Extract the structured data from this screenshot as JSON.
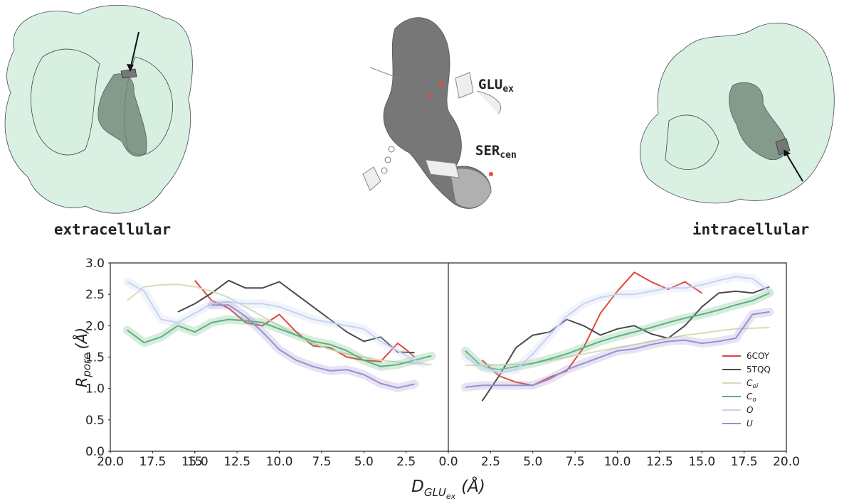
{
  "labels": {
    "left": "extracellular",
    "right": "intracellular",
    "glu": {
      "main": "GLU",
      "sub": "ex"
    },
    "ser": {
      "main": "SER",
      "sub": "cen"
    }
  },
  "chart_data": [
    {
      "type": "line",
      "xlabel": {
        "main": "D",
        "sub": "GLU",
        "subsub": "ex",
        "unit": "(Å)"
      },
      "ylabel": {
        "main": "R",
        "sub": "pore",
        "unit": "(Å)"
      },
      "xlim": [
        20,
        0
      ],
      "xticks": [
        {
          "value": 20,
          "label": "20.0"
        },
        17.5,
        15,
        {
          "value": 15,
          "label": "15.0"
        },
        12.5,
        {
          "value": 10,
          "label": "10.0"
        },
        7.5,
        {
          "value": 5,
          "label": "5.0"
        },
        2.5,
        {
          "value": 0,
          "label": "0.0"
        }
      ],
      "ylim": [
        0,
        3
      ],
      "yticks": [
        {
          "value": 0,
          "label": "0.0"
        },
        0.5,
        {
          "value": 1,
          "label": "1.0"
        },
        1.5,
        {
          "value": 2,
          "label": "2.0"
        },
        2.5,
        {
          "value": 3,
          "label": "3.0"
        }
      ],
      "series": [
        {
          "color": "#e0443a",
          "x": [
            15,
            14,
            13,
            12,
            11,
            10,
            9,
            8,
            7,
            6,
            5,
            4,
            3,
            2.5,
            2
          ],
          "values": [
            2.72,
            2.4,
            2.28,
            2.05,
            2.0,
            2.18,
            1.9,
            1.68,
            1.65,
            1.5,
            1.45,
            1.43,
            1.72,
            1.62,
            1.5
          ]
        },
        {
          "color": "#4a4a4a",
          "x": [
            16,
            15,
            14,
            13,
            12,
            11,
            10,
            9,
            8,
            7,
            6,
            5,
            4,
            3,
            2
          ],
          "values": [
            2.22,
            2.35,
            2.52,
            2.72,
            2.6,
            2.6,
            2.7,
            2.5,
            2.3,
            2.1,
            1.9,
            1.75,
            1.82,
            1.58,
            1.57
          ]
        },
        {
          "color": "#d8dbb8",
          "x": [
            19,
            18,
            17,
            16,
            15,
            14,
            13,
            12,
            11,
            10,
            9,
            8,
            7,
            6,
            5,
            4,
            3,
            2,
            1
          ],
          "values": [
            2.4,
            2.62,
            2.65,
            2.66,
            2.62,
            2.55,
            2.45,
            2.3,
            2.15,
            2.0,
            1.85,
            1.72,
            1.62,
            1.55,
            1.5,
            1.45,
            1.42,
            1.4,
            1.38
          ]
        },
        {
          "color": "#5ab27a",
          "band": true,
          "x": [
            19,
            18,
            17,
            16,
            15,
            14,
            13,
            12,
            11,
            10,
            9,
            8,
            7,
            6,
            5,
            4,
            3,
            2,
            1
          ],
          "values": [
            1.93,
            1.73,
            1.82,
            2.0,
            1.9,
            2.05,
            2.1,
            2.08,
            2.05,
            1.95,
            1.85,
            1.75,
            1.7,
            1.6,
            1.45,
            1.35,
            1.38,
            1.45,
            1.52
          ]
        },
        {
          "color": "#c6d2f0",
          "band": true,
          "x": [
            19,
            18,
            17,
            16,
            15,
            14,
            13,
            12,
            11,
            10,
            9,
            8,
            7,
            6,
            5,
            4,
            3,
            2,
            1.5
          ],
          "values": [
            2.7,
            2.55,
            2.1,
            2.05,
            2.2,
            2.35,
            2.38,
            2.35,
            2.35,
            2.3,
            2.2,
            2.1,
            2.05,
            2.0,
            1.95,
            1.75,
            1.6,
            1.45,
            1.4
          ]
        },
        {
          "color": "#9a8fd0",
          "band": true,
          "x": [
            14,
            13,
            12,
            11,
            10,
            9,
            8,
            7,
            6,
            5,
            4,
            3,
            2
          ],
          "values": [
            2.33,
            2.33,
            2.15,
            1.9,
            1.62,
            1.45,
            1.35,
            1.28,
            1.3,
            1.22,
            1.08,
            1.01,
            1.07
          ]
        }
      ]
    },
    {
      "type": "line",
      "xlim": [
        0,
        20
      ],
      "xticks": [
        2.5,
        {
          "value": 5,
          "label": "5.0"
        },
        7.5,
        {
          "value": 10,
          "label": "10.0"
        },
        12.5,
        {
          "value": 15,
          "label": "15.0"
        },
        17.5,
        {
          "value": 20,
          "label": "20.0"
        }
      ],
      "ylim": [
        0,
        3
      ],
      "legend": "lower right",
      "series": [
        {
          "name": "6COY",
          "color": "#e0443a",
          "x": [
            2,
            3,
            4,
            5,
            6,
            7,
            8,
            9,
            10,
            11,
            12,
            13,
            14,
            15
          ],
          "values": [
            1.45,
            1.2,
            1.1,
            1.05,
            1.18,
            1.28,
            1.65,
            2.2,
            2.55,
            2.85,
            2.7,
            2.58,
            2.7,
            2.52
          ]
        },
        {
          "name": "5TQQ",
          "color": "#4a4a4a",
          "x": [
            2,
            3,
            4,
            5,
            6,
            7,
            8,
            9,
            10,
            11,
            12,
            13,
            14,
            15,
            16,
            17,
            18,
            19
          ],
          "values": [
            0.8,
            1.2,
            1.65,
            1.85,
            1.9,
            2.1,
            2.0,
            1.85,
            1.95,
            2.0,
            1.87,
            1.8,
            2.0,
            2.3,
            2.52,
            2.55,
            2.52,
            2.62
          ]
        },
        {
          "name": "C",
          "name_sub": "oi",
          "italic": true,
          "color": "#d8dbb8",
          "x": [
            1,
            2,
            3,
            4,
            5,
            6,
            7,
            8,
            9,
            10,
            11,
            12,
            13,
            14,
            15,
            16,
            17,
            18,
            19
          ],
          "values": [
            1.37,
            1.37,
            1.38,
            1.38,
            1.4,
            1.45,
            1.5,
            1.55,
            1.6,
            1.65,
            1.7,
            1.75,
            1.8,
            1.85,
            1.88,
            1.92,
            1.95,
            1.96,
            1.97
          ]
        },
        {
          "name": "C",
          "name_sub": "o",
          "italic": true,
          "color": "#5ab27a",
          "band": true,
          "x": [
            1,
            2,
            3,
            4,
            5,
            6,
            7,
            8,
            9,
            10,
            11,
            12,
            13,
            14,
            15,
            16,
            17,
            18,
            19
          ],
          "values": [
            1.6,
            1.35,
            1.3,
            1.35,
            1.4,
            1.47,
            1.55,
            1.65,
            1.75,
            1.83,
            1.9,
            1.97,
            2.05,
            2.12,
            2.18,
            2.25,
            2.33,
            2.4,
            2.52
          ]
        },
        {
          "name": "O",
          "italic": true,
          "color": "#c6d2f0",
          "band": true,
          "x": [
            1,
            2,
            3,
            4,
            5,
            6,
            7,
            8,
            9,
            10,
            11,
            12,
            13,
            14,
            15,
            16,
            17,
            18,
            19
          ],
          "values": [
            1.5,
            1.35,
            1.25,
            1.3,
            1.55,
            1.85,
            2.15,
            2.35,
            2.45,
            2.5,
            2.5,
            2.55,
            2.6,
            2.6,
            2.65,
            2.72,
            2.78,
            2.75,
            2.55
          ]
        },
        {
          "name": "U",
          "italic": true,
          "color": "#9a8fd0",
          "band": true,
          "x": [
            1,
            2,
            3,
            4,
            5,
            6,
            7,
            8,
            9,
            10,
            11,
            12,
            13,
            14,
            15,
            16,
            17,
            18,
            19
          ],
          "values": [
            1.02,
            1.05,
            1.05,
            1.05,
            1.05,
            1.15,
            1.3,
            1.4,
            1.5,
            1.6,
            1.63,
            1.7,
            1.75,
            1.77,
            1.72,
            1.75,
            1.8,
            2.18,
            2.22
          ]
        }
      ]
    }
  ]
}
